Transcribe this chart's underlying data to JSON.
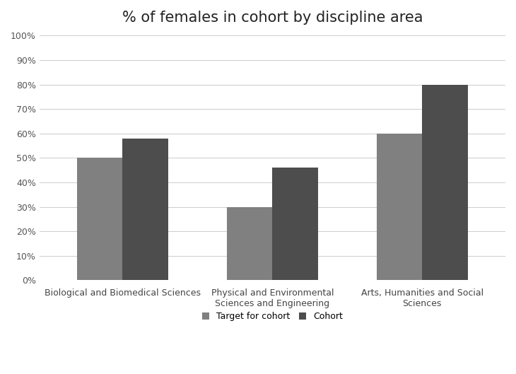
{
  "title": "% of females in cohort by discipline area",
  "categories": [
    "Biological and Biomedical Sciences",
    "Physical and Environmental\nSciences and Engineering",
    "Arts, Humanities and Social\nSciences"
  ],
  "target_values": [
    0.5,
    0.3,
    0.6
  ],
  "cohort_values": [
    0.58,
    0.46,
    0.8
  ],
  "target_color": "#808080",
  "cohort_color": "#4D4D4D",
  "target_label": "Target for cohort",
  "cohort_label": "Cohort",
  "ylim": [
    0,
    1.0
  ],
  "yticks": [
    0.0,
    0.1,
    0.2,
    0.3,
    0.4,
    0.5,
    0.6,
    0.7,
    0.8,
    0.9,
    1.0
  ],
  "background_color": "#FFFFFF",
  "bar_width": 0.55,
  "title_fontsize": 15,
  "axis_fontsize": 9,
  "legend_fontsize": 9
}
